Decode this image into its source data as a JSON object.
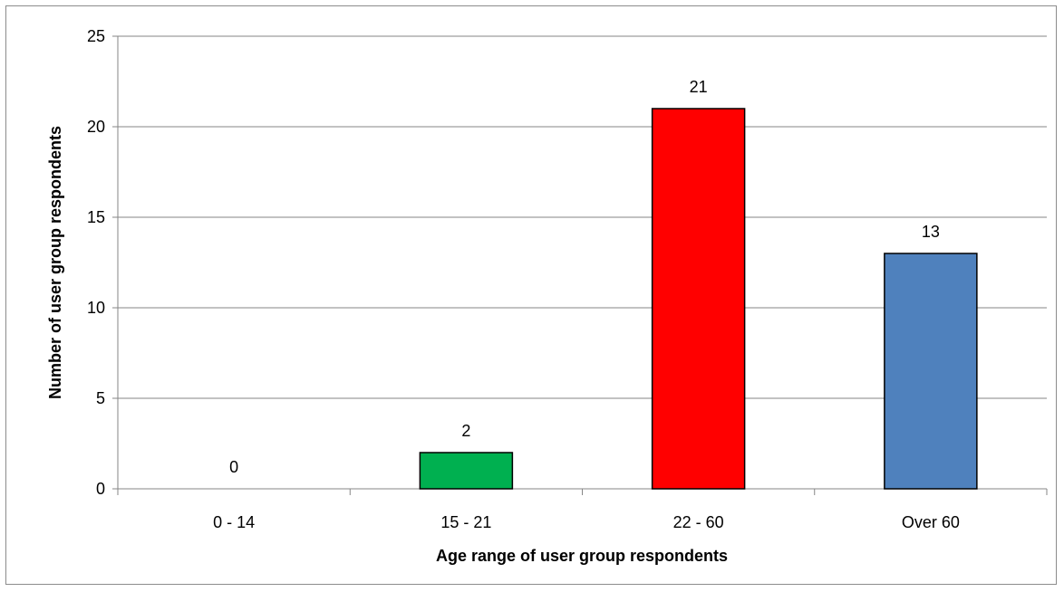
{
  "chart_data": {
    "type": "bar",
    "title": "",
    "xlabel": "Age range of user group respondents",
    "ylabel": "Number of user group respondents",
    "categories": [
      "0 - 14",
      "15 - 21",
      "22 - 60",
      "Over 60"
    ],
    "values": [
      0,
      2,
      21,
      13
    ],
    "colors": [
      "#00b050",
      "#00b050",
      "#ff0000",
      "#4f81bd"
    ],
    "ylim": [
      0,
      25
    ],
    "yticks": [
      0,
      5,
      10,
      15,
      20,
      25
    ],
    "ytick_labels": [
      "0",
      "5",
      "10",
      "15",
      "20",
      "25"
    ],
    "grid": true,
    "data_labels": [
      "0",
      "2",
      "21",
      "13"
    ],
    "legend": "none"
  }
}
